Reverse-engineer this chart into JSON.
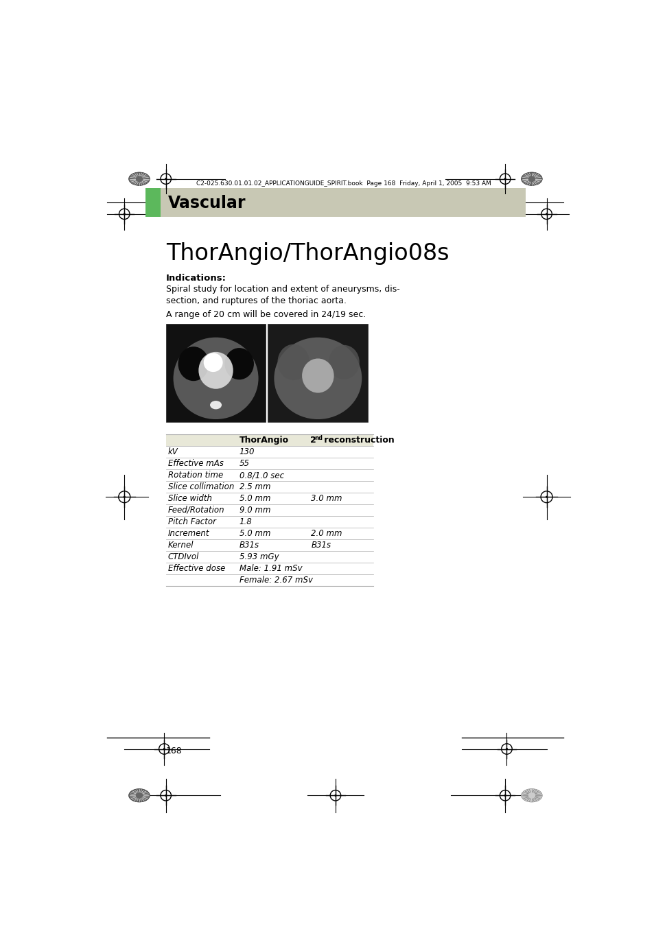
{
  "page_bg": "#ffffff",
  "header_bar_color": "#c8c8b4",
  "green_tab_color": "#5cb85c",
  "section_title": "Vascular",
  "page_title": "ThorAngio/ThorAngio08s",
  "header_text": "C2-025.630.01.01.02_APPLICATIONGUIDE_SPIRIT.book  Page 168  Friday, April 1, 2005  9:53 AM",
  "indications_bold": "Indications",
  "indications_colon": ":",
  "para1": "Spiral study for location and extent of aneurysms, dis-\nsection, and ruptures of the thoriac aorta.",
  "para2": "A range of 20 cm will be covered in 24/19 sec.",
  "table_header_col2": "ThorAngio",
  "table_rows": [
    [
      "kV",
      "130",
      ""
    ],
    [
      "Effective mAs",
      "55",
      ""
    ],
    [
      "Rotation time",
      "0.8/1.0 sec",
      ""
    ],
    [
      "Slice collimation",
      "2.5 mm",
      ""
    ],
    [
      "Slice width",
      "5.0 mm",
      "3.0 mm"
    ],
    [
      "Feed/Rotation",
      "9.0 mm",
      ""
    ],
    [
      "Pitch Factor",
      "1.8",
      ""
    ],
    [
      "Increment",
      "5.0 mm",
      "2.0 mm"
    ],
    [
      "Kernel",
      "B31s",
      "B31s"
    ],
    [
      "CTDIvol",
      "5.93 mGy",
      ""
    ],
    [
      "Effective dose",
      "Male: 1.91 mSv",
      ""
    ],
    [
      "",
      "Female: 2.67 mSv",
      ""
    ]
  ],
  "page_number": "168",
  "table_border_color": "#aaaaaa",
  "table_header_bg": "#e8e8d8"
}
